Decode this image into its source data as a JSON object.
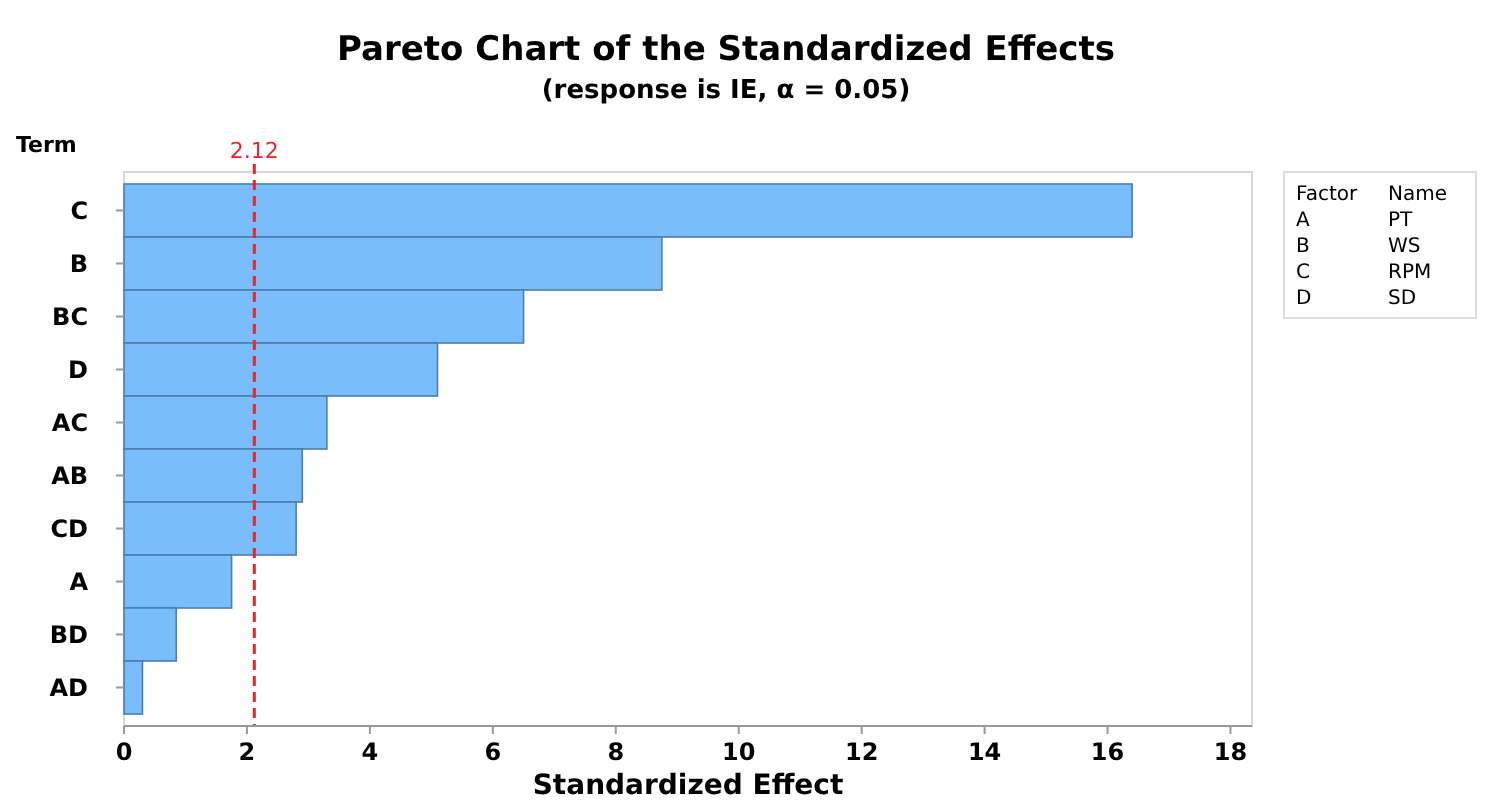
{
  "chart_data": {
    "type": "bar",
    "orientation": "horizontal",
    "title": "Pareto Chart of the Standardized Effects",
    "subtitle": "(response is IE, α = 0.05)",
    "xlabel": "Standardized Effect",
    "ylabel": "Term",
    "categories": [
      "C",
      "B",
      "BC",
      "D",
      "AC",
      "AB",
      "CD",
      "A",
      "BD",
      "AD"
    ],
    "values": [
      16.4,
      8.75,
      6.5,
      5.1,
      3.3,
      2.9,
      2.8,
      1.75,
      0.85,
      0.3
    ],
    "color": "#79bdfc",
    "xlim": [
      0,
      18.35
    ],
    "xticks": [
      0,
      2,
      4,
      6,
      8,
      10,
      12,
      14,
      16,
      18
    ],
    "ref_lines": [
      {
        "axis": "x",
        "value": 2.12,
        "label": "2.12",
        "color": "#e8262a",
        "line_style": "dashed"
      }
    ],
    "annotations": [
      "Factor",
      "Name",
      "A",
      "PT",
      "B",
      "WS",
      "C",
      "RPM",
      "D",
      "SD"
    ],
    "grid": false
  }
}
